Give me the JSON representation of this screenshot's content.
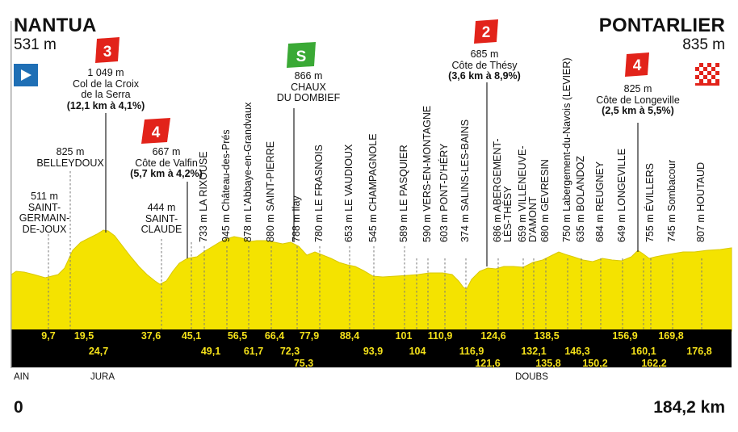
{
  "stage": {
    "start": {
      "name": "NANTUA",
      "altitude": "531 m"
    },
    "finish": {
      "name": "PONTARLIER",
      "altitude": "835 m"
    },
    "distance_start": "0",
    "distance_end": "184,2 km"
  },
  "colors": {
    "profile_fill": "#f4e300",
    "band": "#000000",
    "km_text": "#f4e11a",
    "climb_badge": "#e2231a",
    "sprint_badge": "#3aa935",
    "start_flag": "#1f6fb5"
  },
  "climbs": [
    {
      "category": "3",
      "altitude": "1 049 m",
      "name": "Col de la Croix\nde la Serra",
      "detail": "(12,1 km à 4,1%)"
    },
    {
      "category": "4",
      "altitude": "667 m",
      "name": "Côte de Valfin",
      "detail": "(5,7 km à 4,2%)"
    },
    {
      "category": "2",
      "altitude": "685 m",
      "name": "Côte de Thésy",
      "detail": "(3,6 km à 8,9%)"
    },
    {
      "category": "4",
      "altitude": "825 m",
      "name": "Côte de Longeville",
      "detail": "(2,5 km à 5,5%)"
    }
  ],
  "sprint": {
    "badge": "S",
    "altitude": "866 m",
    "name": "CHAUX\nDU DOMBIEF"
  },
  "places": [
    {
      "text": "511 m\nSAINT-\nGERMAIN-\nDE-JOUX"
    },
    {
      "text": "825 m\nBELLEYDOUX"
    },
    {
      "text": "444 m\nSAINT-\nCLAUDE"
    }
  ],
  "vertical_places": [
    "733 m LA RIXOUSE",
    "945 m Château-des-Prés",
    "878 m L'Abbaye-en-Grandvaux",
    "880 m SAINT-PIERRE",
    "788 m Ilay",
    "780 m LE FRASNOIS",
    "653 m LE VAUDIOUX",
    "545 m CHAMPAGNOLE",
    "589 m LE PASQUIER",
    "590 m VERS-EN-MONTAGNE",
    "603 m PONT-D'HÉRY",
    "374 m SALINS-LES-BAINS",
    "686 m ABERGEMENT-\nLÈS-THÉSY",
    "659 m VILLENEUVE-\nD'AMONT",
    "680 m GEVRESIN",
    "750 m Labergement-du-Navois (LEVIER)",
    "635 m BOLANDOZ",
    "684 m REUGNEY",
    "649 m LONGEVILLE",
    "755 m ÉVILLERS",
    "745 m Sombacour",
    "807 m HOUTAUD"
  ],
  "km_row1": [
    "9,7",
    "19,5",
    "37,6",
    "45,1",
    "56,5",
    "66,4",
    "77,9",
    "88,4",
    "101",
    "110,9",
    "124,6",
    "138,5",
    "156,9",
    "169,8"
  ],
  "km_row2": [
    "24,7",
    "49,1",
    "61,7",
    "72,3",
    "93,9",
    "104",
    "116,9",
    "132,1",
    "146,3",
    "160,1",
    "176,8"
  ],
  "km_row3": [
    "75,3",
    "121,6",
    "135,8",
    "150,2",
    "162,2"
  ],
  "regions": [
    "AIN",
    "JURA",
    "DOUBS"
  ]
}
